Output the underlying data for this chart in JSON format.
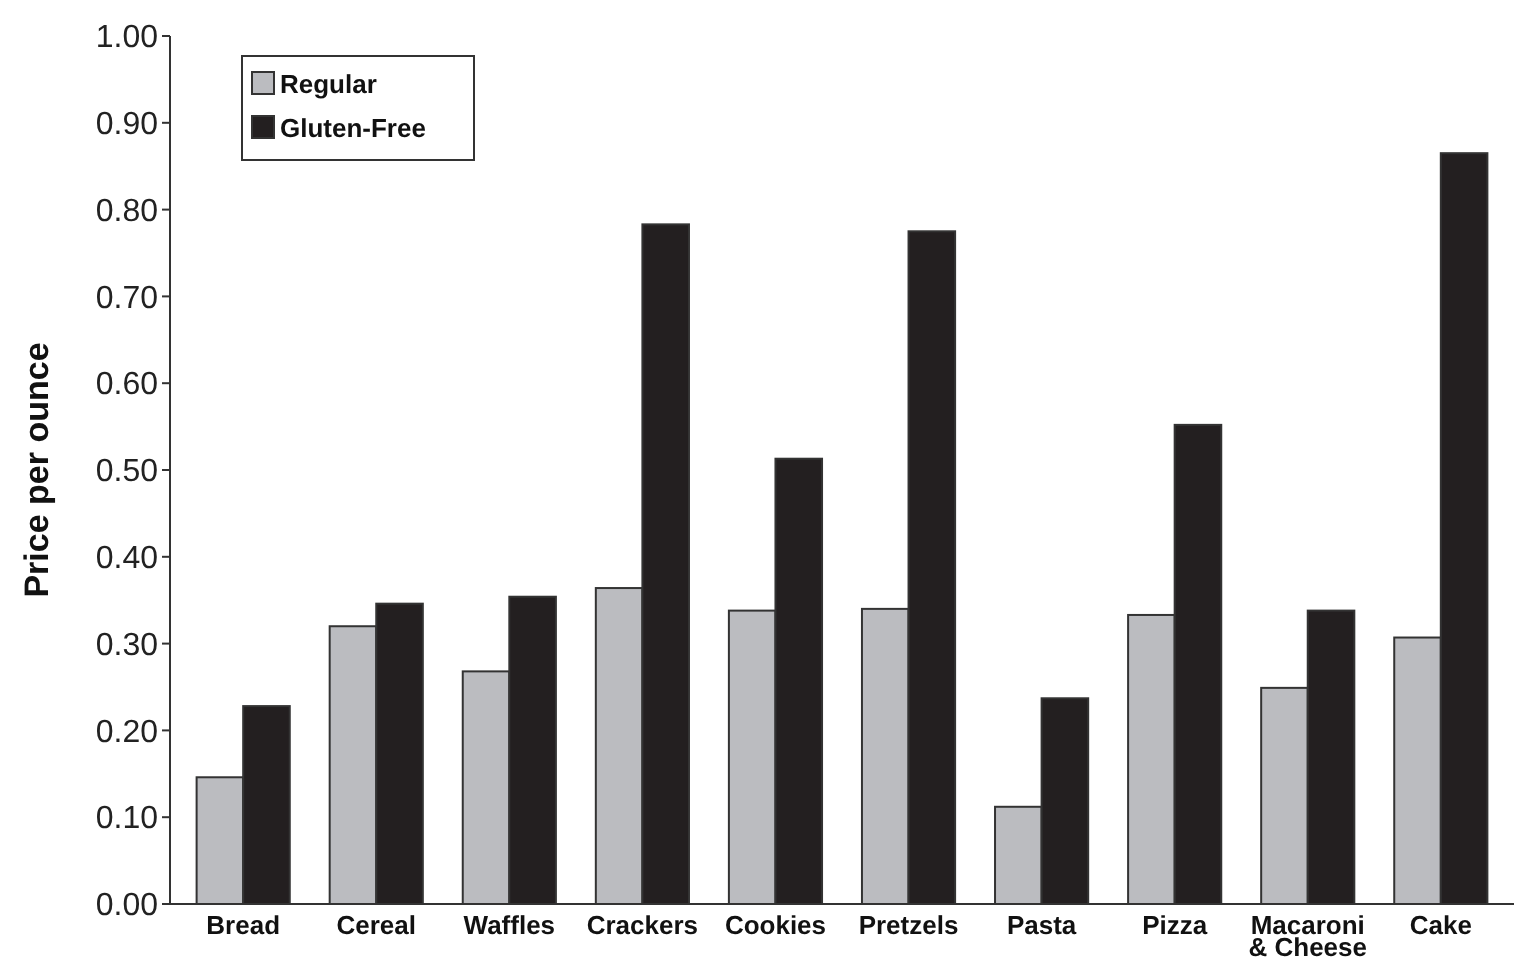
{
  "chart_data": {
    "type": "bar",
    "ylabel": "Price per ounce",
    "categories": [
      "Bread",
      "Cereal",
      "Waffles",
      "Crackers",
      "Cookies",
      "Pretzels",
      "Pasta",
      "Pizza",
      "Macaroni\n& Cheese",
      "Cake"
    ],
    "series": [
      {
        "name": "Regular",
        "color": "#bbbcc0",
        "values": [
          0.146,
          0.32,
          0.268,
          0.364,
          0.338,
          0.34,
          0.112,
          0.333,
          0.249,
          0.307
        ]
      },
      {
        "name": "Gluten-Free",
        "color": "#231f20",
        "values": [
          0.228,
          0.346,
          0.354,
          0.783,
          0.513,
          0.775,
          0.237,
          0.552,
          0.338,
          0.865
        ]
      }
    ],
    "ylim": [
      0,
      1
    ],
    "yticks": [
      {
        "value": 0,
        "label": "0.00"
      },
      {
        "value": 0.1,
        "label": "0.10"
      },
      {
        "value": 0.2,
        "label": "0.20"
      },
      {
        "value": 0.3,
        "label": "0.30"
      },
      {
        "value": 0.4,
        "label": "0.40"
      },
      {
        "value": 0.5,
        "label": "0.50"
      },
      {
        "value": 0.6,
        "label": "0.60"
      },
      {
        "value": 0.7,
        "label": "0.70"
      },
      {
        "value": 0.8,
        "label": "0.80"
      },
      {
        "value": 0.9,
        "label": "0.90"
      },
      {
        "value": 1,
        "label": "1.00"
      }
    ],
    "grid": false,
    "legend": "top left"
  }
}
